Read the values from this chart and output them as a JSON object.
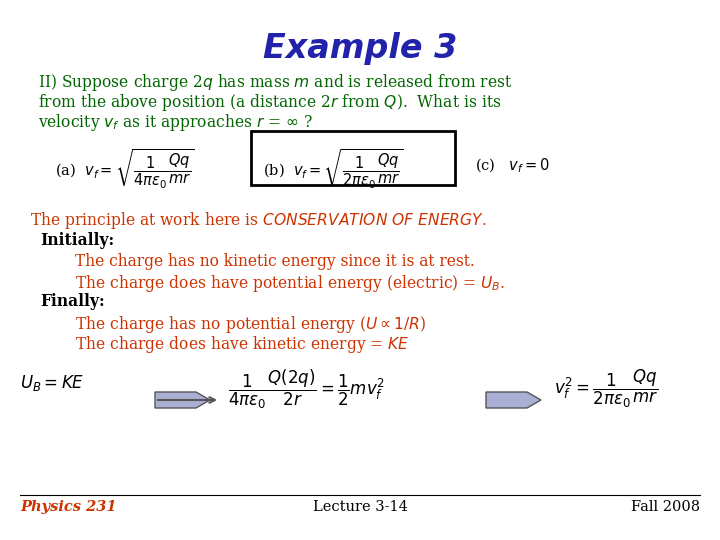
{
  "title": "Example 3",
  "title_color": "#2222aa",
  "title_fontsize": 24,
  "bg_color": "#ffffff",
  "green_color": "#006600",
  "red_color": "#cc3300",
  "black_color": "#000000",
  "footer_color": "#cc3300",
  "footer_left": "Physics 231",
  "footer_center": "Lecture 3-14",
  "footer_right": "Fall 2008"
}
